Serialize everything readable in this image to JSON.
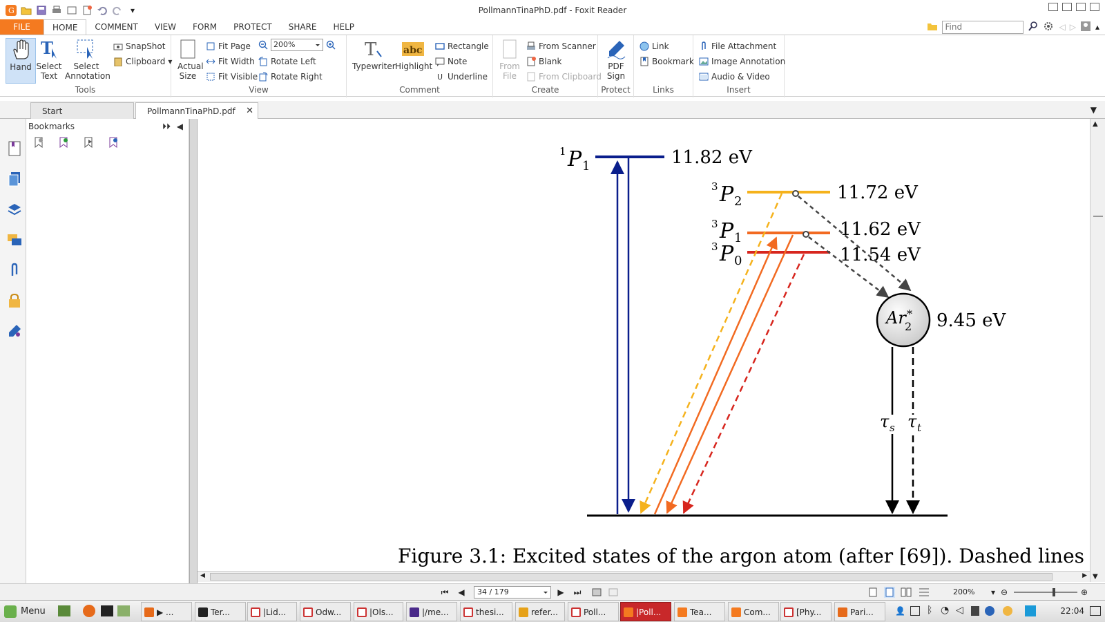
{
  "window": {
    "title": "PollmannTinaPhD.pdf - Foxit Reader"
  },
  "ribbon_tabs": [
    "FILE",
    "HOME",
    "COMMENT",
    "VIEW",
    "FORM",
    "PROTECT",
    "SHARE",
    "HELP"
  ],
  "search": {
    "placeholder": "Find"
  },
  "tools": {
    "hand": "Hand",
    "select_text": "Select Text",
    "select_annotation": "Select Annotation",
    "snapshot": "SnapShot",
    "clipboard": "Clipboard",
    "label": "Tools"
  },
  "view": {
    "actual_size": "Actual Size",
    "fit_page": "Fit Page",
    "fit_width": "Fit Width",
    "fit_visible": "Fit Visible",
    "zoom": "200%",
    "rotate_left": "Rotate Left",
    "rotate_right": "Rotate Right",
    "label": "View"
  },
  "comment": {
    "typewriter": "Typewriter",
    "highlight": "Highlight",
    "rectangle": "Rectangle",
    "note": "Note",
    "underline": "Underline",
    "label": "Comment"
  },
  "create": {
    "from_file": "From File",
    "from_scanner": "From Scanner",
    "blank": "Blank",
    "from_clipboard": "From Clipboard",
    "label": "Create"
  },
  "protect": {
    "pdf_sign": "PDF Sign",
    "label": "Protect"
  },
  "links": {
    "link": "Link",
    "bookmark": "Bookmark",
    "label": "Links"
  },
  "insert": {
    "file_attachment": "File Attachment",
    "image_annotation": "Image Annotation",
    "audio_video": "Audio & Video",
    "label": "Insert"
  },
  "doc_tabs": [
    "Start",
    "PollmannTinaPhD.pdf"
  ],
  "bookmarks": {
    "title": "Bookmarks"
  },
  "figure": {
    "levels": [
      {
        "term": "1P1",
        "energy": "11.82 eV",
        "color": "#0a1e8c"
      },
      {
        "term": "3P2",
        "energy": "11.72 eV",
        "color": "#f5b21c"
      },
      {
        "term": "3P1",
        "energy": "11.62 eV",
        "color": "#f26a21"
      },
      {
        "term": "3P0",
        "energy": "11.54 eV",
        "color": "#d7261e"
      }
    ],
    "excimer": {
      "label": "Ar2*",
      "energy": "9.45 eV"
    },
    "lifetimes": [
      "τs",
      "τt"
    ],
    "caption": "Figure 3.1: Excited states of the argon atom (after [69]). Dashed lines"
  },
  "status": {
    "page": "34 / 179",
    "zoom": "200%"
  },
  "taskbar": {
    "menu": "Menu",
    "tasks": [
      "▶ ...",
      "Ter...",
      "|Lid...",
      "Odw...",
      "|Ols...",
      "|/me...",
      "thesi...",
      "refer...",
      "Poll...",
      "|Poll...",
      "Tea...",
      "Com...",
      "[Phy...",
      "Pari..."
    ],
    "clock": "22:04"
  }
}
